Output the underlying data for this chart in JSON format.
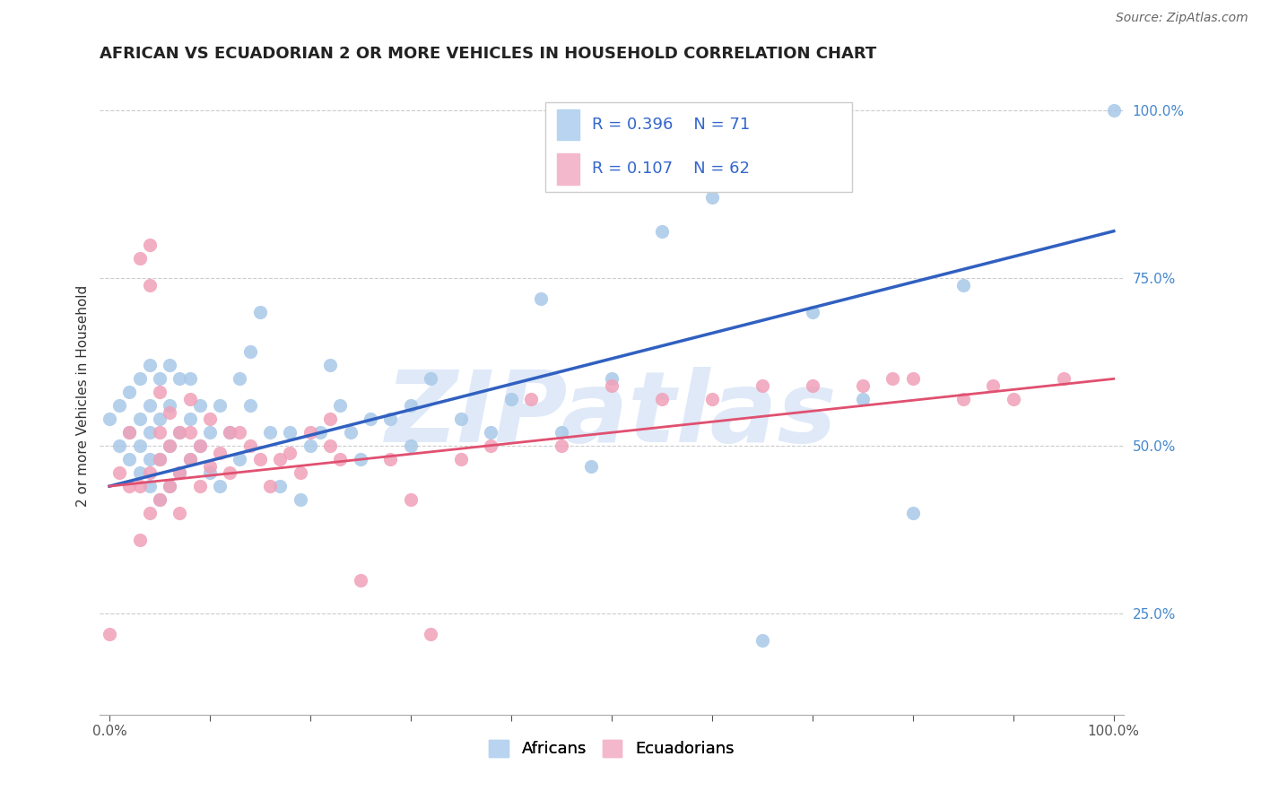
{
  "title": "AFRICAN VS ECUADORIAN 2 OR MORE VEHICLES IN HOUSEHOLD CORRELATION CHART",
  "source": "Source: ZipAtlas.com",
  "ylabel": "2 or more Vehicles in Household",
  "ytick_labels": [
    "25.0%",
    "50.0%",
    "75.0%",
    "100.0%"
  ],
  "ytick_vals": [
    0.25,
    0.5,
    0.75,
    1.0
  ],
  "xtick_vals": [
    0.0,
    0.1,
    0.2,
    0.3,
    0.4,
    0.5,
    0.6,
    0.7,
    0.8,
    0.9,
    1.0
  ],
  "watermark": "ZIPatlas",
  "r_african": "R = 0.396",
  "n_african": "N = 71",
  "r_ecuadorian": "R = 0.107",
  "n_ecuadorian": "N = 62",
  "african_scatter_x": [
    0.0,
    0.01,
    0.01,
    0.02,
    0.02,
    0.02,
    0.03,
    0.03,
    0.03,
    0.03,
    0.04,
    0.04,
    0.04,
    0.04,
    0.04,
    0.05,
    0.05,
    0.05,
    0.05,
    0.06,
    0.06,
    0.06,
    0.06,
    0.07,
    0.07,
    0.07,
    0.08,
    0.08,
    0.08,
    0.09,
    0.09,
    0.1,
    0.1,
    0.11,
    0.11,
    0.12,
    0.13,
    0.13,
    0.14,
    0.14,
    0.15,
    0.16,
    0.17,
    0.18,
    0.19,
    0.2,
    0.21,
    0.22,
    0.23,
    0.24,
    0.25,
    0.26,
    0.28,
    0.3,
    0.3,
    0.32,
    0.35,
    0.38,
    0.4,
    0.43,
    0.45,
    0.48,
    0.5,
    0.55,
    0.6,
    0.65,
    0.7,
    0.75,
    0.8,
    0.85,
    1.0
  ],
  "african_scatter_y": [
    0.54,
    0.5,
    0.56,
    0.48,
    0.52,
    0.58,
    0.46,
    0.5,
    0.54,
    0.6,
    0.44,
    0.48,
    0.52,
    0.56,
    0.62,
    0.42,
    0.48,
    0.54,
    0.6,
    0.44,
    0.5,
    0.56,
    0.62,
    0.46,
    0.52,
    0.6,
    0.48,
    0.54,
    0.6,
    0.5,
    0.56,
    0.46,
    0.52,
    0.44,
    0.56,
    0.52,
    0.6,
    0.48,
    0.56,
    0.64,
    0.7,
    0.52,
    0.44,
    0.52,
    0.42,
    0.5,
    0.52,
    0.62,
    0.56,
    0.52,
    0.48,
    0.54,
    0.54,
    0.5,
    0.56,
    0.6,
    0.54,
    0.52,
    0.57,
    0.72,
    0.52,
    0.47,
    0.6,
    0.82,
    0.87,
    0.21,
    0.7,
    0.57,
    0.4,
    0.74,
    1.0
  ],
  "ecuadorian_scatter_x": [
    0.0,
    0.01,
    0.02,
    0.02,
    0.03,
    0.03,
    0.03,
    0.04,
    0.04,
    0.04,
    0.04,
    0.05,
    0.05,
    0.05,
    0.05,
    0.06,
    0.06,
    0.06,
    0.07,
    0.07,
    0.07,
    0.08,
    0.08,
    0.08,
    0.09,
    0.09,
    0.1,
    0.1,
    0.11,
    0.12,
    0.12,
    0.13,
    0.14,
    0.15,
    0.16,
    0.17,
    0.18,
    0.19,
    0.2,
    0.22,
    0.22,
    0.23,
    0.25,
    0.28,
    0.3,
    0.32,
    0.35,
    0.38,
    0.42,
    0.45,
    0.5,
    0.55,
    0.6,
    0.65,
    0.7,
    0.75,
    0.78,
    0.8,
    0.85,
    0.88,
    0.9,
    0.95
  ],
  "ecuadorian_scatter_y": [
    0.22,
    0.46,
    0.44,
    0.52,
    0.36,
    0.44,
    0.78,
    0.8,
    0.4,
    0.46,
    0.74,
    0.42,
    0.48,
    0.52,
    0.58,
    0.44,
    0.5,
    0.55,
    0.4,
    0.46,
    0.52,
    0.48,
    0.52,
    0.57,
    0.44,
    0.5,
    0.47,
    0.54,
    0.49,
    0.46,
    0.52,
    0.52,
    0.5,
    0.48,
    0.44,
    0.48,
    0.49,
    0.46,
    0.52,
    0.5,
    0.54,
    0.48,
    0.3,
    0.48,
    0.42,
    0.22,
    0.48,
    0.5,
    0.57,
    0.5,
    0.59,
    0.57,
    0.57,
    0.59,
    0.59,
    0.59,
    0.6,
    0.6,
    0.57,
    0.59,
    0.57,
    0.6
  ],
  "african_line_x": [
    0.0,
    1.0
  ],
  "african_line_y_start": 0.44,
  "african_line_y_end": 0.82,
  "ecuadorian_line_x": [
    0.0,
    1.0
  ],
  "ecuadorian_line_y_start": 0.44,
  "ecuadorian_line_y_end": 0.6,
  "scatter_color_african": "#a8c8e8",
  "scatter_color_ecuadorian": "#f0a0b8",
  "scatter_alpha": 0.85,
  "scatter_size": 120,
  "line_color_african": "#3060c0",
  "line_color_ecuadorian": "#e05070",
  "title_fontsize": 13,
  "axis_label_fontsize": 11,
  "tick_fontsize": 11,
  "legend_fontsize": 13,
  "source_fontsize": 10,
  "watermark_color": "#b8d0f0",
  "watermark_alpha": 0.45,
  "background_color": "#ffffff",
  "grid_color": "#cccccc",
  "xlim": [
    -0.01,
    1.01
  ],
  "ylim": [
    0.1,
    1.05
  ]
}
